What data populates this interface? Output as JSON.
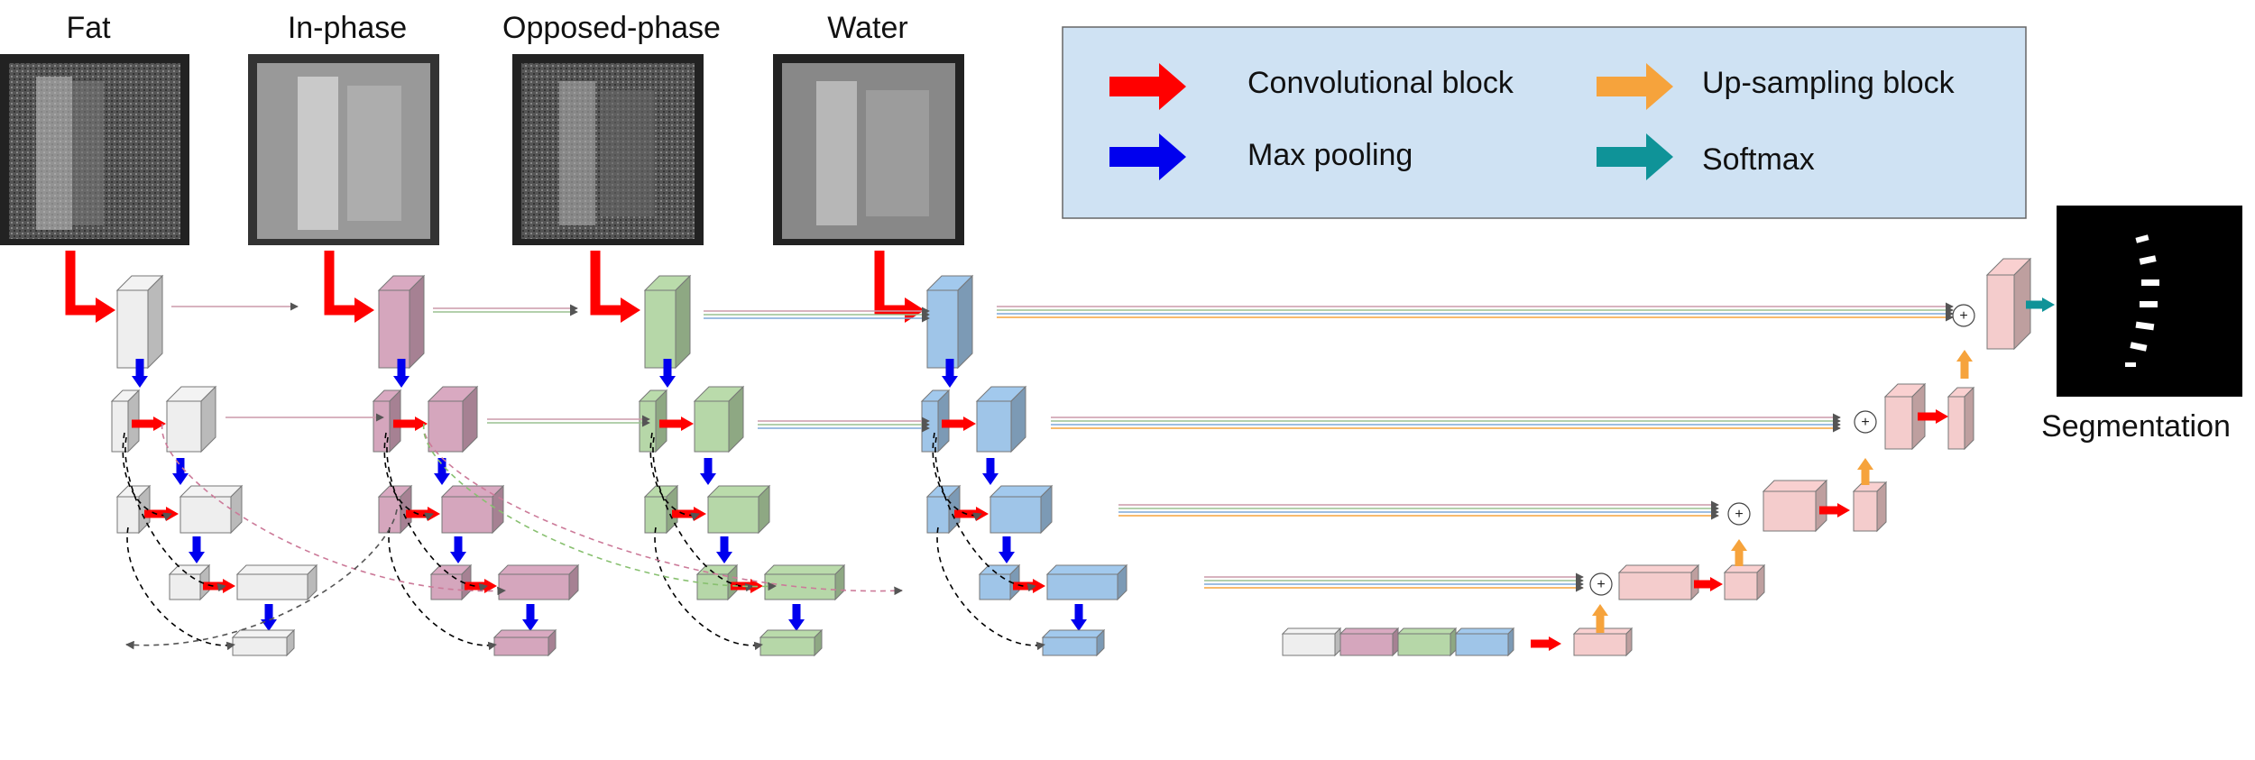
{
  "modalities": [
    {
      "label": "Fat",
      "color": "#eeeeee"
    },
    {
      "label": "In-phase",
      "color": "#d5a6bd"
    },
    {
      "label": "Opposed-phase",
      "color": "#b6d7a8"
    },
    {
      "label": "Water",
      "color": "#9fc5e8"
    }
  ],
  "legend": {
    "items": [
      {
        "label": "Convolutional block",
        "color": "#ff0000",
        "icon": "convolutional-block-arrow-icon"
      },
      {
        "label": "Up-sampling block",
        "color": "#f6a33c",
        "icon": "up-sampling-arrow-icon"
      },
      {
        "label": "Max pooling",
        "color": "#0000ee",
        "icon": "max-pooling-arrow-icon"
      },
      {
        "label": "Softmax",
        "color": "#0f9398",
        "icon": "softmax-arrow-icon"
      }
    ],
    "background": "#cfe2f3"
  },
  "output": {
    "label": "Segmentation"
  },
  "decoder_color": "#f4cccc",
  "merge_symbol": "+"
}
